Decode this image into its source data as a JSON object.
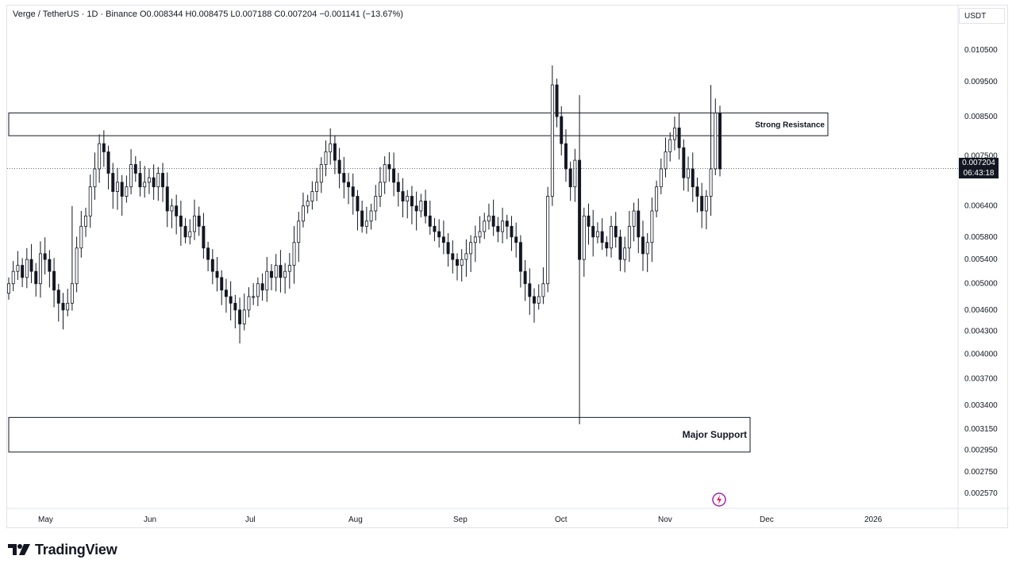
{
  "header": {
    "symbol": "Verge / TetherUS · 1D · Binance",
    "open": "O0.008344",
    "high": "H0.008475",
    "low": "L0.007188",
    "close": "C0.007204",
    "change": "−0.001141 (−13.67%)"
  },
  "currency_label": "USDT",
  "price_tag": {
    "price": "0.007204",
    "countdown": "06:43:18"
  },
  "brand": {
    "name": "TradingView"
  },
  "colors": {
    "candle_up": "#ffffff",
    "candle_down": "#131722",
    "outline": "#131722",
    "grid": "#f0f3fa"
  },
  "chart_data": {
    "type": "candlestick",
    "x_tick_labels": [
      "May",
      "Jun",
      "Jul",
      "Aug",
      "Sep",
      "Oct",
      "Nov",
      "Dec",
      "2026"
    ],
    "y_tick_labels": [
      "0.010500",
      "0.009500",
      "0.008500",
      "0.007500",
      "0.006400",
      "0.005800",
      "0.005400",
      "0.005000",
      "0.004600",
      "0.004300",
      "0.004000",
      "0.003700",
      "0.003400",
      "0.003150",
      "0.002950",
      "0.002750",
      "0.002570"
    ],
    "y_scale": "log",
    "ylim": [
      0.00245,
      0.0115
    ],
    "last_price": 0.007204,
    "zones": [
      {
        "label": "Strong Resistance",
        "low": 0.008,
        "high": 0.0086
      },
      {
        "label": "Major Support",
        "low": 0.00293,
        "high": 0.00327
      }
    ],
    "closes": [
      0.005,
      0.0052,
      0.0053,
      0.0051,
      0.0054,
      0.0052,
      0.005,
      0.0055,
      0.0054,
      0.0052,
      0.0049,
      0.0047,
      0.0046,
      0.0047,
      0.005,
      0.0056,
      0.006,
      0.0062,
      0.0068,
      0.0072,
      0.0078,
      0.0076,
      0.0071,
      0.0067,
      0.0069,
      0.0066,
      0.0068,
      0.0073,
      0.0071,
      0.0068,
      0.0069,
      0.007,
      0.0068,
      0.0071,
      0.0068,
      0.0063,
      0.0064,
      0.0062,
      0.006,
      0.0058,
      0.0059,
      0.0062,
      0.006,
      0.0056,
      0.0054,
      0.0052,
      0.0051,
      0.0049,
      0.0048,
      0.0047,
      0.0046,
      0.0044,
      0.0046,
      0.0048,
      0.0048,
      0.005,
      0.0049,
      0.0052,
      0.0051,
      0.0053,
      0.0051,
      0.0052,
      0.0053,
      0.0057,
      0.0061,
      0.0064,
      0.0065,
      0.0067,
      0.0069,
      0.0073,
      0.0076,
      0.0078,
      0.0074,
      0.0071,
      0.0069,
      0.0068,
      0.0066,
      0.0063,
      0.006,
      0.0061,
      0.0063,
      0.0066,
      0.0069,
      0.0073,
      0.0072,
      0.0069,
      0.0067,
      0.0065,
      0.0066,
      0.0064,
      0.0063,
      0.0065,
      0.0062,
      0.006,
      0.0059,
      0.0058,
      0.0057,
      0.0055,
      0.0054,
      0.0053,
      0.0054,
      0.0055,
      0.0057,
      0.0058,
      0.0059,
      0.0061,
      0.0062,
      0.006,
      0.0059,
      0.0061,
      0.006,
      0.0058,
      0.0057,
      0.0052,
      0.005,
      0.0048,
      0.0047,
      0.0048,
      0.005,
      0.0066,
      0.0094,
      0.0085,
      0.0078,
      0.0072,
      0.0068,
      0.0074,
      0.0054,
      0.0062,
      0.006,
      0.0058,
      0.0059,
      0.0057,
      0.0056,
      0.006,
      0.0058,
      0.0054,
      0.0056,
      0.006,
      0.0063,
      0.0058,
      0.0055,
      0.0057,
      0.0063,
      0.0068,
      0.0072,
      0.0076,
      0.0079,
      0.0082,
      0.0077,
      0.007,
      0.0072,
      0.0068,
      0.0066,
      0.0063,
      0.0066,
      0.0072,
      0.0086,
      0.0072
    ]
  }
}
